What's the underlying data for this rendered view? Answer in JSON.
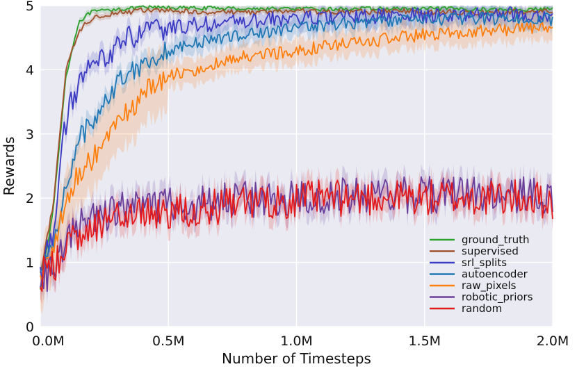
{
  "chart_data": {
    "type": "line",
    "title": "",
    "xlabel": "Number of Timesteps",
    "ylabel": "Rewards",
    "xlim": [
      0,
      2000000
    ],
    "ylim": [
      0,
      5
    ],
    "x_ticks": [
      {
        "value": 0,
        "label": "0.0M"
      },
      {
        "value": 500000,
        "label": "0.5M"
      },
      {
        "value": 1000000,
        "label": "1.0M"
      },
      {
        "value": 1500000,
        "label": "1.5M"
      },
      {
        "value": 2000000,
        "label": "2.0M"
      }
    ],
    "y_ticks": [
      {
        "value": 0,
        "label": "0"
      },
      {
        "value": 1,
        "label": "1"
      },
      {
        "value": 2,
        "label": "2"
      },
      {
        "value": 3,
        "label": "3"
      },
      {
        "value": 4,
        "label": "4"
      },
      {
        "value": 5,
        "label": "5"
      }
    ],
    "grid": true,
    "legend_position": "bottom-right",
    "background": "#eaeaf2",
    "x": [
      0,
      50000,
      100000,
      150000,
      200000,
      250000,
      300000,
      350000,
      400000,
      450000,
      500000,
      600000,
      700000,
      800000,
      900000,
      1000000,
      1100000,
      1200000,
      1300000,
      1400000,
      1500000,
      1600000,
      1700000,
      1800000,
      1900000,
      2000000
    ],
    "series": [
      {
        "name": "ground_truth",
        "color": "#2ca02c",
        "values": [
          0.6,
          1.8,
          3.9,
          4.75,
          4.9,
          4.92,
          4.95,
          4.95,
          4.97,
          4.97,
          4.97,
          4.96,
          4.96,
          4.95,
          4.95,
          4.95,
          4.94,
          4.95,
          4.95,
          4.95,
          4.95,
          4.95,
          4.94,
          4.94,
          4.94,
          4.95
        ]
      },
      {
        "name": "supervised",
        "color": "#a0522d",
        "values": [
          0.8,
          1.9,
          4.0,
          4.6,
          4.8,
          4.85,
          4.9,
          4.9,
          4.93,
          4.92,
          4.92,
          4.9,
          4.9,
          4.9,
          4.9,
          4.92,
          4.9,
          4.9,
          4.9,
          4.92,
          4.9,
          4.9,
          4.88,
          4.9,
          4.9,
          4.92
        ]
      },
      {
        "name": "srl_splits",
        "color": "#3b3bc4",
        "values": [
          0.8,
          1.5,
          3.2,
          3.8,
          4.0,
          4.2,
          4.4,
          4.5,
          4.55,
          4.6,
          4.65,
          4.7,
          4.72,
          4.75,
          4.78,
          4.8,
          4.8,
          4.82,
          4.83,
          4.84,
          4.85,
          4.85,
          4.86,
          4.86,
          4.87,
          4.85
        ]
      },
      {
        "name": "autoencoder",
        "color": "#1f77b4",
        "values": [
          0.8,
          1.3,
          2.2,
          2.9,
          3.2,
          3.5,
          3.8,
          4.0,
          4.1,
          4.2,
          4.3,
          4.4,
          4.5,
          4.55,
          4.6,
          4.65,
          4.7,
          4.72,
          4.75,
          4.77,
          4.78,
          4.79,
          4.8,
          4.8,
          4.8,
          4.78
        ]
      },
      {
        "name": "raw_pixels",
        "color": "#ff7f0e",
        "values": [
          0.8,
          1.2,
          1.9,
          2.4,
          2.6,
          2.9,
          3.1,
          3.4,
          3.6,
          3.8,
          3.9,
          4.0,
          4.1,
          4.2,
          4.25,
          4.3,
          4.35,
          4.4,
          4.45,
          4.5,
          4.55,
          4.58,
          4.6,
          4.62,
          4.65,
          4.65
        ]
      },
      {
        "name": "robotic_priors",
        "color": "#6a3d9a",
        "values": [
          0.7,
          0.9,
          1.3,
          1.55,
          1.7,
          1.75,
          1.8,
          1.82,
          1.85,
          1.87,
          1.9,
          1.92,
          1.95,
          1.98,
          2.0,
          2.0,
          2.02,
          2.03,
          2.05,
          2.05,
          2.05,
          2.05,
          2.05,
          2.05,
          2.05,
          2.05
        ]
      },
      {
        "name": "random",
        "color": "#e31a1c",
        "values": [
          0.8,
          0.9,
          1.2,
          1.45,
          1.6,
          1.65,
          1.7,
          1.72,
          1.75,
          1.78,
          1.8,
          1.83,
          1.86,
          1.9,
          1.95,
          1.98,
          2.0,
          2.0,
          2.02,
          2.02,
          2.0,
          2.02,
          2.0,
          2.0,
          2.0,
          1.95
        ]
      }
    ]
  }
}
